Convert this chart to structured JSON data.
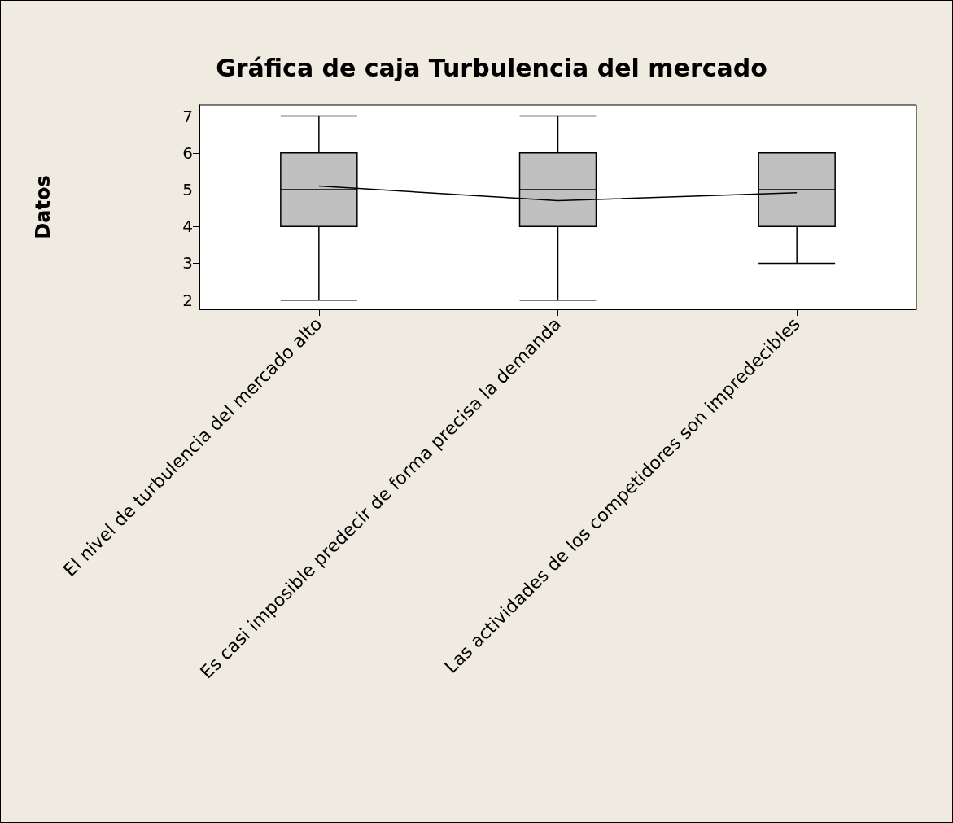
{
  "chart_data": {
    "type": "box",
    "title": "Gráfica de caja Turbulencia del mercado",
    "ylabel": "Datos",
    "categories": [
      "El nivel de turbulencia del mercado alto",
      "Es casi imposible predecir de forma precisa la demanda",
      "Las actividades de los competidores son impredecibles"
    ],
    "boxes": [
      {
        "low": 2,
        "q1": 4,
        "median": 5,
        "q3": 6,
        "high": 7
      },
      {
        "low": 2,
        "q1": 4,
        "median": 5,
        "q3": 6,
        "high": 7
      },
      {
        "low": 3,
        "q1": 4,
        "median": 5,
        "q3": 6,
        "high": 6
      }
    ],
    "color": "#c0c0c0",
    "series": [
      {
        "type": "line",
        "color": "#000000",
        "values": [
          5.1,
          4.7,
          4.92
        ]
      }
    ],
    "marker": "none",
    "ylim": [
      1.75,
      7.3
    ],
    "yticks": [
      2,
      3,
      4,
      5,
      6,
      7
    ],
    "grid": false
  }
}
